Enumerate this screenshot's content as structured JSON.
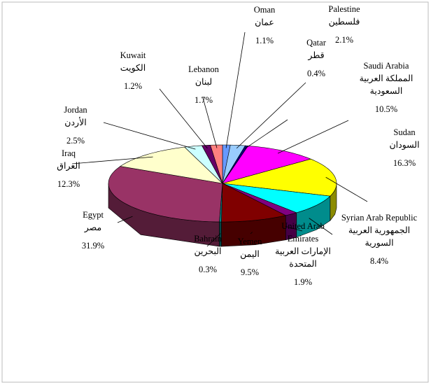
{
  "chart_data": {
    "type": "pie3d",
    "categories": [
      "Oman",
      "Palestine",
      "Qatar",
      "Saudi Arabia",
      "Sudan",
      "Syrian Arab Republic",
      "United Arab Emirates",
      "Yemen",
      "Bahrain",
      "Egypt",
      "Iraq",
      "Jordan",
      "Kuwait",
      "Lebanon"
    ],
    "categories_ar": [
      "عمان",
      "فلسطين",
      "قطر",
      "المملكة العربية السعودية",
      "السودان",
      "الجمهورية العربية السورية",
      "الإمارات العربية المتحدة",
      "اليمن",
      "البحرين",
      "مصر",
      "العراق",
      "الأردن",
      "الكويت",
      "لبنان"
    ],
    "values": [
      1.1,
      2.1,
      0.4,
      10.5,
      16.3,
      8.4,
      1.9,
      9.5,
      0.3,
      31.9,
      12.3,
      2.5,
      1.2,
      1.7
    ],
    "value_labels": [
      "1.1%",
      "2.1%",
      "0.4%",
      "10.5%",
      "16.3%",
      "8.4%",
      "1.9%",
      "9.5%",
      "0.3%",
      "31.9%",
      "12.3%",
      "2.5%",
      "1.2%",
      "1.7%"
    ],
    "colors": [
      "#6699ff",
      "#99ccff",
      "#000080",
      "#ff00ff",
      "#ffff00",
      "#00ffff",
      "#800080",
      "#800000",
      "#008080",
      "#993366",
      "#ffffcc",
      "#ccffff",
      "#660066",
      "#ff8080"
    ]
  }
}
